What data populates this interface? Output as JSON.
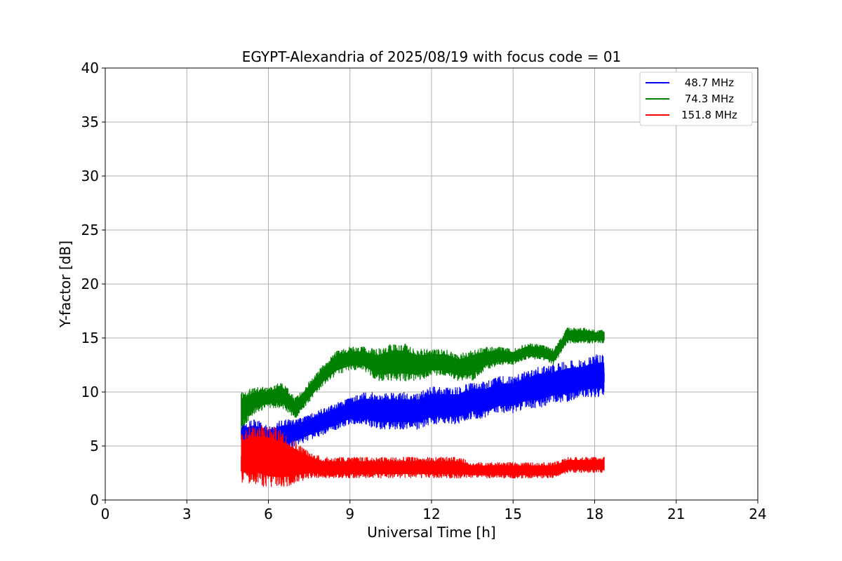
{
  "chart_data": {
    "type": "line",
    "title": "EGYPT-Alexandria of 2025/08/19 with focus code = 01",
    "xlabel": "Universal Time [h]",
    "ylabel": "Y-factor [dB]",
    "xlim": [
      0,
      24
    ],
    "ylim": [
      0,
      40
    ],
    "xticks": [
      0,
      3,
      6,
      9,
      12,
      15,
      18,
      21,
      24
    ],
    "yticks": [
      0,
      5,
      10,
      15,
      20,
      25,
      30,
      35,
      40
    ],
    "grid": true,
    "legend_position": "top-right",
    "series": [
      {
        "name": " 48.7 MHz",
        "color": "#0000ff",
        "x": [
          5.0,
          5.5,
          6.0,
          6.5,
          7.0,
          7.5,
          8.0,
          8.5,
          9.0,
          9.5,
          10.0,
          10.5,
          11.0,
          11.5,
          12.0,
          12.5,
          13.0,
          13.5,
          14.0,
          14.5,
          15.0,
          15.5,
          16.0,
          16.5,
          17.0,
          17.5,
          18.0,
          18.35
        ],
        "y_low": [
          5.0,
          4.5,
          4.0,
          4.5,
          5.0,
          5.5,
          6.0,
          6.5,
          7.0,
          7.0,
          6.5,
          6.5,
          6.5,
          6.5,
          7.0,
          7.0,
          7.0,
          7.5,
          7.5,
          8.0,
          8.0,
          8.5,
          8.5,
          9.0,
          9.0,
          9.5,
          9.5,
          9.5
        ],
        "y_high": [
          7.0,
          7.5,
          7.0,
          7.5,
          7.5,
          8.0,
          8.5,
          9.0,
          9.5,
          10.0,
          10.0,
          10.0,
          10.0,
          10.0,
          10.5,
          10.5,
          10.5,
          11.0,
          11.0,
          11.5,
          11.5,
          12.0,
          12.5,
          12.5,
          13.0,
          13.0,
          13.5,
          13.5
        ]
      },
      {
        "name": " 74.3 MHz",
        "color": "#008000",
        "x": [
          5.0,
          5.5,
          6.0,
          6.5,
          7.0,
          7.5,
          8.0,
          8.5,
          9.0,
          9.5,
          10.0,
          10.5,
          11.0,
          11.5,
          12.0,
          12.5,
          13.0,
          13.5,
          14.0,
          14.5,
          15.0,
          15.5,
          16.0,
          16.5,
          17.0,
          17.5,
          18.0,
          18.35
        ],
        "y_low": [
          6.5,
          8.0,
          8.5,
          8.5,
          7.5,
          9.0,
          10.5,
          11.5,
          12.0,
          12.0,
          11.0,
          11.0,
          11.0,
          11.0,
          11.5,
          11.5,
          11.0,
          11.0,
          12.0,
          12.5,
          12.5,
          13.0,
          13.0,
          12.5,
          14.5,
          14.5,
          14.5,
          14.5
        ],
        "y_high": [
          10.0,
          10.5,
          10.5,
          11.0,
          9.5,
          11.0,
          12.5,
          13.8,
          14.2,
          14.2,
          14.0,
          14.5,
          14.5,
          14.0,
          14.0,
          14.0,
          13.5,
          14.0,
          14.2,
          14.2,
          14.0,
          14.5,
          14.5,
          14.0,
          16.0,
          16.0,
          15.8,
          15.8
        ]
      },
      {
        "name": "151.8 MHz",
        "color": "#ff0000",
        "x": [
          5.0,
          5.5,
          6.0,
          6.5,
          7.0,
          7.5,
          8.0,
          8.5,
          9.0,
          9.5,
          10.0,
          10.5,
          11.0,
          11.5,
          12.0,
          12.5,
          13.0,
          13.5,
          14.0,
          14.5,
          15.0,
          15.5,
          16.0,
          16.5,
          17.0,
          17.5,
          18.0,
          18.35
        ],
        "y_low": [
          1.5,
          1.5,
          1.0,
          1.0,
          1.5,
          2.0,
          2.0,
          2.0,
          2.0,
          2.0,
          2.0,
          2.0,
          2.0,
          2.0,
          2.0,
          2.0,
          2.0,
          2.0,
          2.0,
          2.0,
          2.0,
          2.0,
          2.0,
          2.0,
          2.5,
          2.5,
          2.5,
          2.5
        ],
        "y_high": [
          6.5,
          7.0,
          7.0,
          6.5,
          5.5,
          4.5,
          4.0,
          4.0,
          4.0,
          4.0,
          4.0,
          4.0,
          4.0,
          4.0,
          4.0,
          4.0,
          4.0,
          3.5,
          3.5,
          3.5,
          3.5,
          3.5,
          3.5,
          3.5,
          4.0,
          4.0,
          4.0,
          4.0
        ]
      }
    ]
  }
}
